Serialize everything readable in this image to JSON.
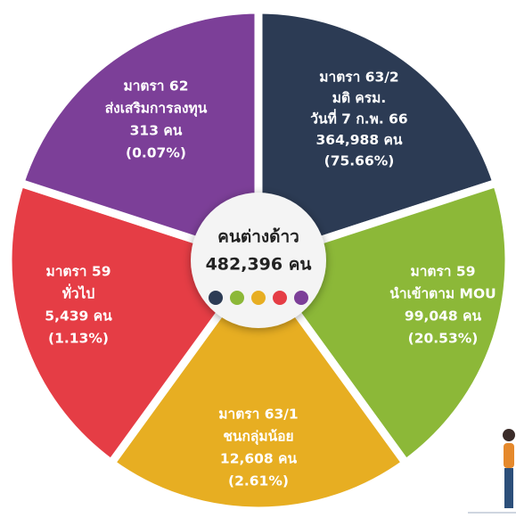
{
  "center": {
    "title": "คนต่างด้าว",
    "total": "482,396 คน"
  },
  "segments": [
    {
      "color": "#2c3b54",
      "lines": [
        "มาตรา 63/2",
        "มติ ครม.",
        "วันที่ 7 ก.พ. 66",
        "364,988 คน",
        "(75.66%)"
      ]
    },
    {
      "color": "#8cb838",
      "lines": [
        "มาตรา 59",
        "นำเข้าตาม MOU",
        "99,048 คน",
        "(20.53%)"
      ]
    },
    {
      "color": "#e7ae22",
      "lines": [
        "มาตรา 63/1",
        "ชนกลุ่มน้อย",
        "12,608 คน",
        "(2.61%)"
      ]
    },
    {
      "color": "#e53d45",
      "lines": [
        "มาตรา 59",
        "ทั่วไป",
        "5,439 คน",
        "(1.13%)"
      ]
    },
    {
      "color": "#7c3f98",
      "lines": [
        "มาตรา 62",
        "ส่งเสริมการลงทุน",
        "313 คน",
        "(0.07%)"
      ]
    }
  ]
}
